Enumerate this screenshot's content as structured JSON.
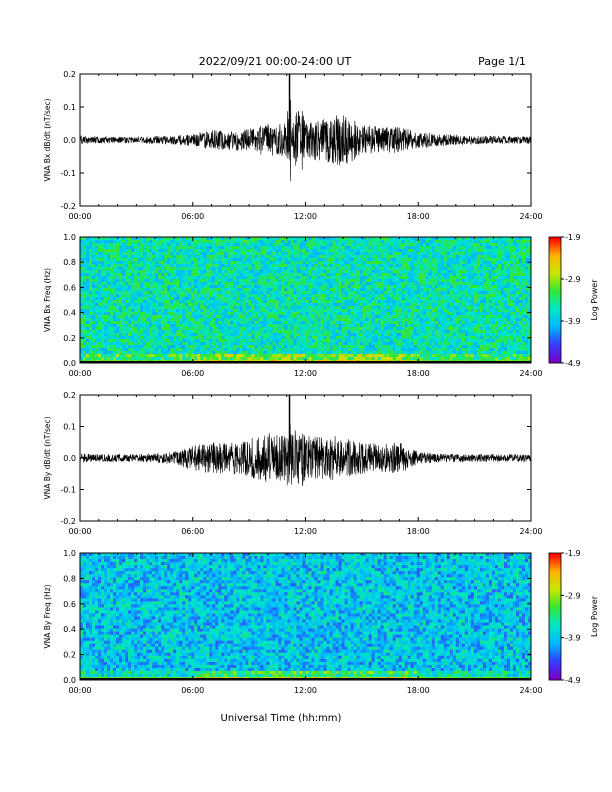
{
  "header": {
    "title": "2022/09/21  00:00-24:00 UT",
    "page": "Page 1/1"
  },
  "colors": {
    "trace": "#000000",
    "spectrogram_background": "#21c9ee",
    "colorscale": [
      "#7a00c6",
      "#3340ff",
      "#00b9ff",
      "#00e6c8",
      "#33e633",
      "#c8e600",
      "#ffb400",
      "#ff0000"
    ]
  },
  "chart_data": [
    {
      "type": "line",
      "ylabel": "VNA Bx dB/dt (nT/sec)",
      "xlabel": "",
      "x_range_hours": [
        0,
        24
      ],
      "ylim": [
        -0.2,
        0.2
      ],
      "x_ticks": [
        "00:00",
        "06:00",
        "12:00",
        "18:00",
        "24:00"
      ],
      "y_ticks": [
        "0.2",
        "0.1",
        "0.0",
        "-0.1",
        "-0.2"
      ],
      "y_tick_values": [
        0.2,
        0.1,
        0.0,
        -0.1,
        -0.2
      ],
      "envelope": {
        "hours": [
          0,
          1,
          2,
          3,
          4,
          5,
          6,
          7,
          8,
          9,
          10,
          11,
          11.2,
          12,
          13,
          14,
          15,
          16,
          17,
          18,
          19,
          20,
          21,
          22,
          23,
          24
        ],
        "amplitude": [
          0.012,
          0.01,
          0.01,
          0.01,
          0.012,
          0.015,
          0.02,
          0.03,
          0.03,
          0.035,
          0.05,
          0.05,
          0.2,
          0.06,
          0.065,
          0.08,
          0.05,
          0.04,
          0.04,
          0.025,
          0.02,
          0.015,
          0.012,
          0.012,
          0.012,
          0.012
        ]
      }
    },
    {
      "type": "heatmap",
      "ylabel": "VNA Bx Freq (Hz)",
      "xlabel": "",
      "x_range_hours": [
        0,
        24
      ],
      "ylim": [
        0,
        1.0
      ],
      "x_ticks": [
        "00:00",
        "06:00",
        "12:00",
        "18:00",
        "24:00"
      ],
      "y_ticks": [
        "1.0",
        "0.8",
        "0.6",
        "0.4",
        "0.2",
        "0.0"
      ],
      "y_tick_values": [
        1.0,
        0.8,
        0.6,
        0.4,
        0.2,
        0.0
      ],
      "colorbar": {
        "label": "Log Power",
        "ticks": [
          "-1.9",
          "-2.9",
          "-3.9",
          "-4.9"
        ],
        "range": [
          -4.9,
          -1.9
        ]
      },
      "typical_log_power": -3.6,
      "low_freq_enhancement": "strongest below 0.05 Hz between 06:00 and 18:00"
    },
    {
      "type": "line",
      "ylabel": "VNA By dB/dt (nT/sec)",
      "xlabel": "",
      "x_range_hours": [
        0,
        24
      ],
      "ylim": [
        -0.2,
        0.2
      ],
      "x_ticks": [
        "00:00",
        "06:00",
        "12:00",
        "18:00",
        "24:00"
      ],
      "y_ticks": [
        "0.2",
        "0.1",
        "0.0",
        "-0.1",
        "-0.2"
      ],
      "y_tick_values": [
        0.2,
        0.1,
        0.0,
        -0.1,
        -0.2
      ],
      "envelope": {
        "hours": [
          0,
          1,
          2,
          3,
          4,
          5,
          6,
          7,
          8,
          9,
          10,
          11,
          11.2,
          12,
          13,
          14,
          15,
          16,
          17,
          18,
          19,
          20,
          21,
          22,
          23,
          24
        ],
        "amplitude": [
          0.015,
          0.012,
          0.012,
          0.012,
          0.015,
          0.02,
          0.04,
          0.05,
          0.05,
          0.06,
          0.08,
          0.07,
          0.2,
          0.07,
          0.07,
          0.07,
          0.05,
          0.045,
          0.05,
          0.02,
          0.015,
          0.012,
          0.012,
          0.012,
          0.012,
          0.012
        ]
      }
    },
    {
      "type": "heatmap",
      "ylabel": "VNA By Freq (Hz)",
      "xlabel": "Universal Time (hh:mm)",
      "x_range_hours": [
        0,
        24
      ],
      "ylim": [
        0,
        1.0
      ],
      "x_ticks": [
        "00:00",
        "06:00",
        "12:00",
        "18:00",
        "24:00"
      ],
      "y_ticks": [
        "1.0",
        "0.8",
        "0.6",
        "0.4",
        "0.2",
        "0.0"
      ],
      "y_tick_values": [
        1.0,
        0.8,
        0.6,
        0.4,
        0.2,
        0.0
      ],
      "colorbar": {
        "label": "Log Power",
        "ticks": [
          "-1.9",
          "-2.9",
          "-3.9",
          "-4.9"
        ],
        "range": [
          -4.9,
          -1.9
        ]
      },
      "typical_log_power": -3.9,
      "low_freq_enhancement": "strongest below 0.05 Hz between 06:00 and 18:00"
    }
  ]
}
